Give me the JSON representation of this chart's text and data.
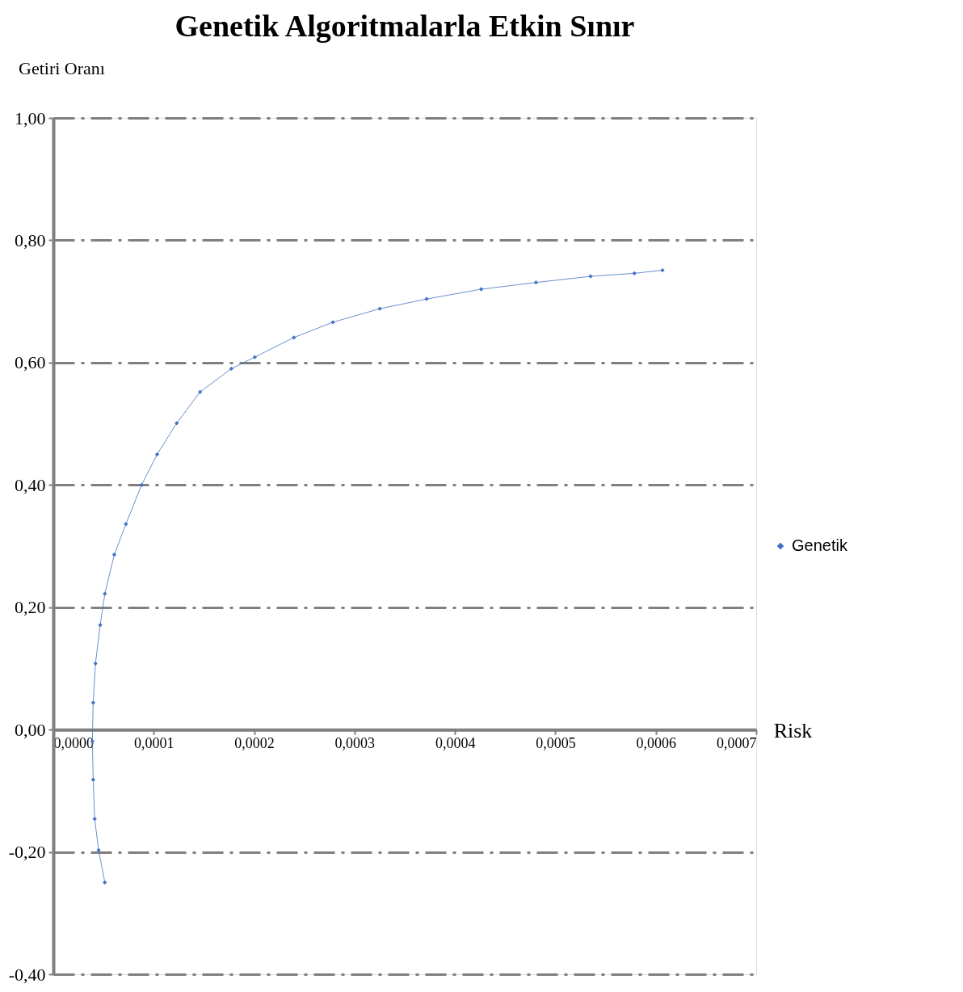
{
  "chart_data": {
    "type": "line",
    "title": "Genetik Algoritmalarla Etkin Sınır",
    "xlabel": "Risk",
    "ylabel": "Getiri  Oranı",
    "xlim": [
      0,
      0.0007
    ],
    "ylim": [
      -0.4,
      1.0
    ],
    "xticks": [
      {
        "value": 0,
        "label": "0,0000"
      },
      {
        "value": 0.0001,
        "label": "0,0001"
      },
      {
        "value": 0.0002,
        "label": "0,0002"
      },
      {
        "value": 0.0003,
        "label": "0,0003"
      },
      {
        "value": 0.0004,
        "label": "0,0004"
      },
      {
        "value": 0.0005,
        "label": "0,0005"
      },
      {
        "value": 0.0006,
        "label": "0,0006"
      },
      {
        "value": 0.0007,
        "label": "0,0007"
      }
    ],
    "yticks": [
      {
        "value": -0.4,
        "label": "-0,40"
      },
      {
        "value": -0.2,
        "label": "-0,20"
      },
      {
        "value": 0,
        "label": "0,00"
      },
      {
        "value": 0.2,
        "label": "0,20"
      },
      {
        "value": 0.4,
        "label": "0,40"
      },
      {
        "value": 0.6,
        "label": "0,60"
      },
      {
        "value": 0.8,
        "label": "0,80"
      },
      {
        "value": 1.0,
        "label": "1,00"
      }
    ],
    "grid": "y",
    "legend": "right",
    "marker": "diamond",
    "line_style": "solid",
    "series": [
      {
        "name": "Genetik",
        "color": "#4472c4",
        "x": [
          5.13e-05,
          4.51e-05,
          4.12e-05,
          3.97e-05,
          3.89e-05,
          3.97e-05,
          4.2e-05,
          4.67e-05,
          5.13e-05,
          6.07e-05,
          7.23e-05,
          8.79e-05,
          0.0001034,
          0.0001229,
          0.0001462,
          0.0001773,
          0.0002007,
          0.0002396,
          0.0002784,
          0.0003251,
          0.0003718,
          0.0004262,
          0.0004807,
          0.0005351,
          0.0005787,
          0.0006067
        ],
        "values": [
          -0.25,
          -0.197,
          -0.146,
          -0.082,
          -0.019,
          0.044,
          0.108,
          0.171,
          0.222,
          0.286,
          0.336,
          0.4,
          0.45,
          0.501,
          0.552,
          0.59,
          0.609,
          0.641,
          0.666,
          0.688,
          0.704,
          0.72,
          0.731,
          0.741,
          0.746,
          0.751
        ]
      }
    ]
  }
}
